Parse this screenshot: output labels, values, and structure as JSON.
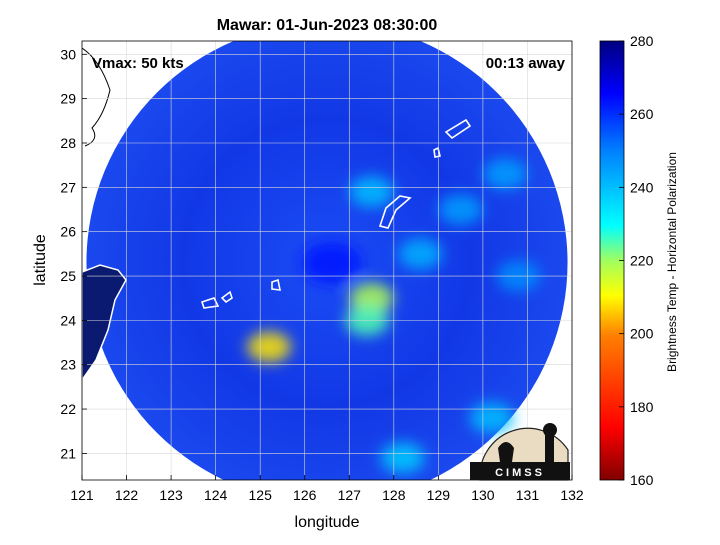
{
  "chart_data": {
    "type": "heatmap",
    "title": "Mawar: 01-Jun-2023 08:30:00",
    "xlabel": "longitude",
    "ylabel": "latitude",
    "xlim": [
      121,
      132
    ],
    "ylim": [
      20.4,
      30.3
    ],
    "x_ticks": [
      121,
      122,
      123,
      124,
      125,
      126,
      127,
      128,
      129,
      130,
      131,
      132
    ],
    "y_ticks": [
      21,
      22,
      23,
      24,
      25,
      26,
      27,
      28,
      29,
      30
    ],
    "grid": true,
    "annotations": {
      "vmax": "Vmax: 50 kts",
      "time_offset": "00:13 away"
    },
    "colorbar": {
      "label": "Brightness Temp - Horizontal Polarization",
      "range": [
        160,
        280
      ],
      "ticks": [
        160,
        180,
        200,
        220,
        240,
        260,
        280
      ]
    },
    "swath": {
      "center": [
        126.5,
        25.3
      ],
      "radius_deg": 5.4
    },
    "features": [
      {
        "kind": "eye",
        "lon": 126.6,
        "lat": 25.3,
        "value": 262
      },
      {
        "kind": "warm-band",
        "lon": 127.5,
        "lat": 24.5,
        "value": 218
      },
      {
        "kind": "warm-band",
        "lon": 127.4,
        "lat": 24.0,
        "value": 225
      },
      {
        "kind": "warm-band",
        "lon": 125.2,
        "lat": 23.4,
        "value": 208
      },
      {
        "kind": "warm-band",
        "lon": 127.5,
        "lat": 26.9,
        "value": 240
      },
      {
        "kind": "warm-band",
        "lon": 128.6,
        "lat": 25.5,
        "value": 242
      },
      {
        "kind": "warm-band",
        "lon": 129.5,
        "lat": 26.5,
        "value": 245
      },
      {
        "kind": "warm-band",
        "lon": 130.5,
        "lat": 27.3,
        "value": 245
      },
      {
        "kind": "warm-band",
        "lon": 130.8,
        "lat": 25.0,
        "value": 248
      },
      {
        "kind": "warm-band",
        "lon": 130.2,
        "lat": 21.8,
        "value": 240
      },
      {
        "kind": "warm-band",
        "lon": 128.2,
        "lat": 20.9,
        "value": 238
      }
    ],
    "logo": "CIMSS"
  }
}
